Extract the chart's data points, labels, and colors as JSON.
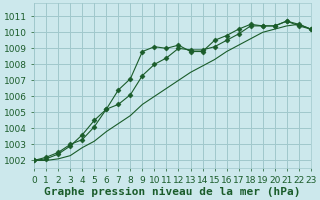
{
  "bg_color": "#cce8ec",
  "grid_color": "#a0c8cc",
  "line_color": "#1a5c2a",
  "marker_color": "#1a5c2a",
  "xlabel": "Graphe pression niveau de la mer (hPa)",
  "ylim": [
    1001.5,
    1011.8
  ],
  "xlim": [
    0,
    23
  ],
  "yticks": [
    1002,
    1003,
    1004,
    1005,
    1006,
    1007,
    1008,
    1009,
    1010,
    1011
  ],
  "xticks": [
    0,
    1,
    2,
    3,
    4,
    5,
    6,
    7,
    8,
    9,
    10,
    11,
    12,
    13,
    14,
    15,
    16,
    17,
    18,
    19,
    20,
    21,
    22,
    23
  ],
  "series": [
    {
      "y": [
        1002.0,
        1002.2,
        1002.5,
        1003.0,
        1003.3,
        1004.1,
        1005.2,
        1006.4,
        1007.1,
        1008.8,
        1009.1,
        1009.0,
        1009.2,
        1008.8,
        1008.8,
        1009.5,
        1009.8,
        1010.2,
        1010.5,
        1010.4,
        1010.4,
        1010.7,
        1010.5,
        1010.2
      ],
      "marker": true
    },
    {
      "y": [
        1002.0,
        1002.0,
        1002.1,
        1002.3,
        1002.8,
        1003.2,
        1003.8,
        1004.3,
        1004.8,
        1005.5,
        1006.0,
        1006.5,
        1007.0,
        1007.5,
        1007.9,
        1008.3,
        1008.8,
        1009.2,
        1009.6,
        1010.0,
        1010.2,
        1010.4,
        1010.5,
        1010.2
      ],
      "marker": false
    },
    {
      "y": [
        1002.0,
        1002.1,
        1002.4,
        1002.9,
        1003.6,
        1004.5,
        1005.2,
        1005.5,
        1006.1,
        1007.3,
        1008.0,
        1008.4,
        1009.0,
        1008.9,
        1008.9,
        1009.1,
        1009.5,
        1009.9,
        1010.4,
        1010.4,
        1010.4,
        1010.7,
        1010.4,
        1010.2
      ],
      "marker": true
    }
  ],
  "tick_fontsize": 6.5,
  "xlabel_fontsize": 8
}
